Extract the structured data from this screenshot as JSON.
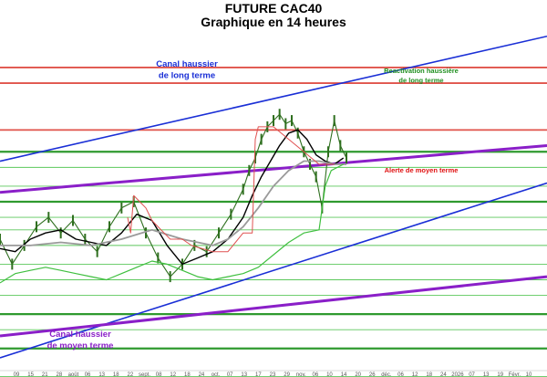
{
  "chart_data": {
    "type": "line",
    "title": "FUTURE CAC40",
    "subtitle": "Graphique en 14 heures",
    "x_ticks": [
      "09",
      "15",
      "21",
      "28",
      "août",
      "06",
      "13",
      "18",
      "22",
      "sept.",
      "08",
      "12",
      "18",
      "24",
      "oct.",
      "07",
      "13",
      "17",
      "23",
      "29",
      "nov.",
      "06",
      "10",
      "14",
      "20",
      "26",
      "déc.",
      "06",
      "12",
      "18",
      "24",
      "2026",
      "07",
      "13",
      "19",
      "Févr.",
      "10"
    ],
    "x_range": [
      0,
      36
    ],
    "y_range": [
      0,
      100
    ],
    "colors": {
      "long_channel": "#1a2fd6",
      "medium_channel": "#8a1fc8",
      "resistance": "#e0524a",
      "support": "#2f9a2f",
      "thin_support": "#5cc85c",
      "price": "#2f6f1f",
      "ma_black": "#000000",
      "ma_gray": "#9a9a9a",
      "ma_green": "#3fbf3f",
      "stop_red": "#e05050"
    },
    "annotations": [
      {
        "text_lines": [
          "Canal haussier",
          "de long terme"
        ],
        "color": "#1a2fd6"
      },
      {
        "text_lines": [
          "Reactivation haussière",
          "de long terme"
        ],
        "color": "#1f8f1f"
      },
      {
        "text_lines": [
          "Alerte de moyen terme"
        ],
        "color": "#e01010"
      },
      {
        "text_lines": [
          "Canal haussier",
          "de moyen terme"
        ],
        "color": "#8a1fc8"
      }
    ],
    "horizontal_levels": [
      {
        "kind": "resistance",
        "y": 93
      },
      {
        "kind": "resistance",
        "y": 88
      },
      {
        "kind": "resistance",
        "y": 73
      },
      {
        "kind": "support",
        "y": 66
      },
      {
        "kind": "thin_support",
        "y": 61
      },
      {
        "kind": "thin_support",
        "y": 55
      },
      {
        "kind": "support",
        "y": 50
      },
      {
        "kind": "thin_support",
        "y": 45
      },
      {
        "kind": "thin_support",
        "y": 41
      },
      {
        "kind": "thin_support",
        "y": 36
      },
      {
        "kind": "thin_support",
        "y": 30
      },
      {
        "kind": "thin_support",
        "y": 25
      },
      {
        "kind": "thin_support",
        "y": 20
      },
      {
        "kind": "support",
        "y": 14
      },
      {
        "kind": "thin_support",
        "y": 9
      },
      {
        "kind": "support",
        "y": 3
      },
      {
        "kind": "thin_support",
        "y": -6
      }
    ],
    "trend_lines": [
      {
        "name": "long_channel_upper",
        "kind": "long_channel",
        "from": [
          0,
          63
        ],
        "to": [
          36,
          103
        ]
      },
      {
        "name": "long_channel_lower",
        "kind": "long_channel",
        "from": [
          0,
          0
        ],
        "to": [
          36,
          56
        ]
      },
      {
        "name": "medium_channel_upper",
        "kind": "medium_channel",
        "from": [
          0,
          53
        ],
        "to": [
          36,
          68
        ]
      },
      {
        "name": "medium_channel_lower",
        "kind": "medium_channel",
        "from": [
          0,
          7
        ],
        "to": [
          36,
          26
        ]
      }
    ],
    "series": [
      {
        "kind": "price",
        "x": [
          0,
          0.8,
          1.6,
          2.4,
          3.2,
          4,
          4.8,
          5.6,
          6.4,
          7.2,
          8,
          8.8,
          9.6,
          10.4,
          11.2,
          12,
          12.8,
          13.6,
          14.4,
          15.2,
          16,
          16.4,
          16.8,
          17.2,
          17.6,
          18,
          18.4,
          18.8,
          19.2,
          19.6,
          20,
          20.4,
          20.8,
          21.2,
          21.6,
          22,
          22.4,
          22.8
        ],
        "y": [
          38,
          30,
          36,
          42,
          45,
          40,
          44,
          38,
          34,
          42,
          48,
          50,
          40,
          32,
          26,
          30,
          36,
          34,
          40,
          46,
          54,
          60,
          64,
          70,
          74,
          76,
          78,
          75,
          76,
          72,
          66,
          62,
          58,
          48,
          66,
          76,
          68,
          64
        ]
      },
      {
        "kind": "ma_black",
        "x": [
          0,
          1,
          2,
          3,
          4,
          5,
          6,
          7,
          8,
          9,
          10,
          11,
          12,
          13,
          14,
          15,
          16,
          16.6,
          17.2,
          17.8,
          18.4,
          19,
          19.6,
          20.2,
          20.8,
          21.4,
          22,
          22.6
        ],
        "y": [
          35,
          34,
          38,
          40,
          41,
          38,
          37,
          36,
          40,
          46,
          44,
          36,
          30,
          32,
          34,
          38,
          45,
          52,
          58,
          63,
          68,
          72,
          73,
          70,
          65,
          63,
          62,
          64
        ]
      },
      {
        "kind": "ma_gray",
        "x": [
          0,
          2,
          4,
          6,
          8,
          10,
          12,
          14,
          15,
          16,
          17,
          18,
          19,
          20,
          21,
          22,
          22.8
        ],
        "y": [
          36,
          36,
          37,
          36,
          38,
          41,
          38,
          36,
          38,
          42,
          48,
          55,
          60,
          63,
          63,
          62,
          62
        ]
      },
      {
        "kind": "ma_green",
        "x": [
          0,
          1,
          2,
          3,
          4,
          5,
          6,
          7,
          8,
          9,
          10,
          11,
          12,
          13,
          14,
          15,
          16,
          17,
          18,
          19,
          20,
          21,
          21.4,
          21.8,
          22.2,
          22.6
        ],
        "y": [
          24,
          27,
          28,
          29,
          28,
          27,
          26,
          25,
          27,
          29,
          31,
          30,
          28,
          26,
          25,
          26,
          27,
          29,
          33,
          37,
          40,
          41,
          55,
          60,
          61,
          62
        ]
      },
      {
        "kind": "stop_red",
        "x": [
          8.4,
          8.6,
          8.8,
          9.2,
          9.6,
          10,
          10.4,
          10.8,
          11.2,
          12,
          12.6,
          14,
          15,
          16,
          16.6,
          16.8,
          17,
          18,
          19,
          20,
          21,
          22
        ],
        "y": [
          45,
          40,
          52,
          50,
          48,
          44,
          42,
          40,
          38,
          38,
          36,
          34,
          34,
          40,
          40,
          70,
          74,
          74,
          70,
          66,
          62,
          62
        ]
      }
    ]
  }
}
